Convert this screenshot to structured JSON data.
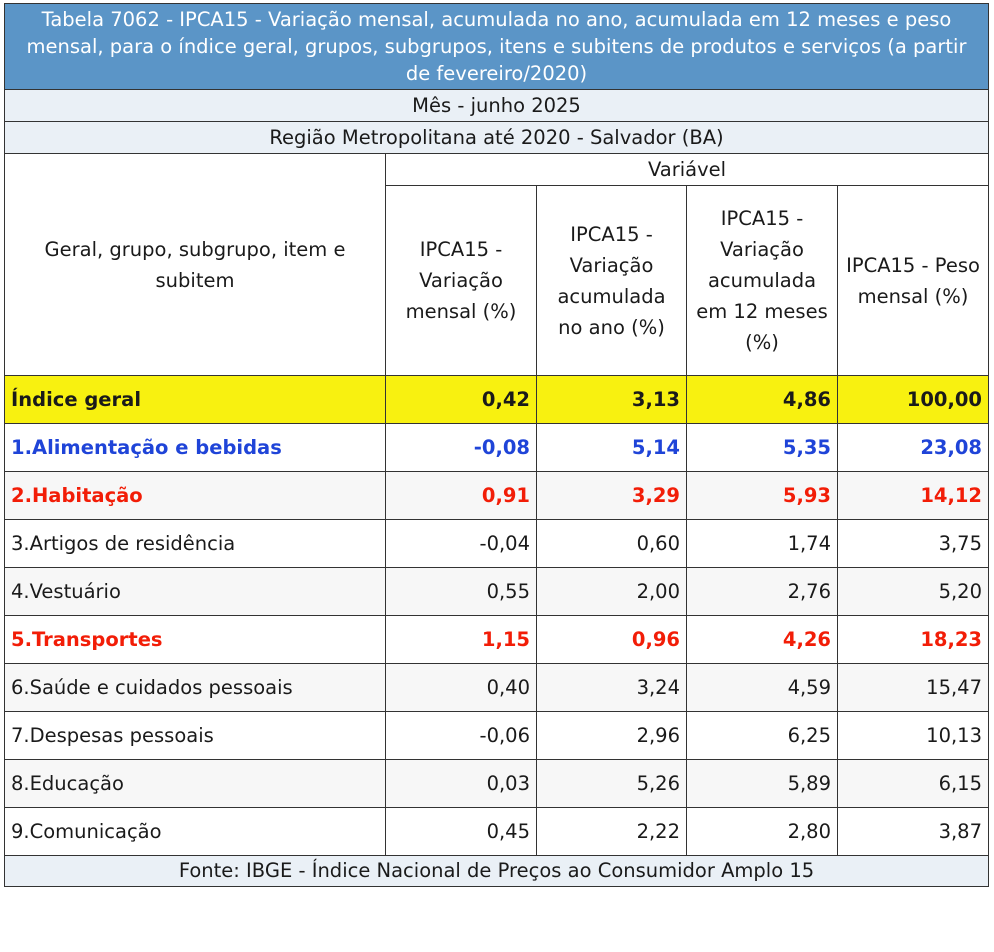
{
  "title": "Tabela 7062 - IPCA15 - Variação mensal, acumulada no ano, acumulada em 12 meses e peso mensal, para o índice geral, grupos, subgrupos, itens e subitens de produtos e serviços (a partir de fevereiro/2020)",
  "month_band": "Mês - junho 2025",
  "region_band": "Região Metropolitana até 2020 - Salvador (BA)",
  "header": {
    "first_col": "Geral, grupo, subgrupo, item e subitem",
    "variable": "Variável",
    "cols": [
      "IPCA15 - Variação mensal (%)",
      "IPCA15 - Variação acumulada no ano (%)",
      "IPCA15 - Variação acumulada em 12 meses (%)",
      "IPCA15 - Peso mensal (%)"
    ]
  },
  "rows": [
    {
      "label": "Índice geral",
      "values": [
        "0,42",
        "3,13",
        "4,86",
        "100,00"
      ],
      "style": "highlight-yellow"
    },
    {
      "label": "1.Alimentação e bebidas",
      "values": [
        "-0,08",
        "5,14",
        "5,35",
        "23,08"
      ],
      "style": "bold-blue"
    },
    {
      "label": "2.Habitação",
      "values": [
        "0,91",
        "3,29",
        "5,93",
        "14,12"
      ],
      "style": "bold-red"
    },
    {
      "label": "3.Artigos de residência",
      "values": [
        "-0,04",
        "0,60",
        "1,74",
        "3,75"
      ],
      "style": "normal"
    },
    {
      "label": "4.Vestuário",
      "values": [
        "0,55",
        "2,00",
        "2,76",
        "5,20"
      ],
      "style": "normal"
    },
    {
      "label": "5.Transportes",
      "values": [
        "1,15",
        "0,96",
        "4,26",
        "18,23"
      ],
      "style": "bold-red"
    },
    {
      "label": "6.Saúde e cuidados pessoais",
      "values": [
        "0,40",
        "3,24",
        "4,59",
        "15,47"
      ],
      "style": "normal"
    },
    {
      "label": "7.Despesas pessoais",
      "values": [
        "-0,06",
        "2,96",
        "6,25",
        "10,13"
      ],
      "style": "normal"
    },
    {
      "label": "8.Educação",
      "values": [
        "0,03",
        "5,26",
        "5,89",
        "6,15"
      ],
      "style": "normal"
    },
    {
      "label": "9.Comunicação",
      "values": [
        "0,45",
        "2,22",
        "2,80",
        "3,87"
      ],
      "style": "normal"
    }
  ],
  "footer": "Fonte: IBGE - Índice Nacional de Preços ao Consumidor Amplo 15",
  "colors": {
    "title_bg": "#5b95c7",
    "band_bg": "#eaf0f6",
    "highlight": "#f8f110",
    "blue_text": "#1f44d8",
    "red_text": "#f21d07"
  }
}
